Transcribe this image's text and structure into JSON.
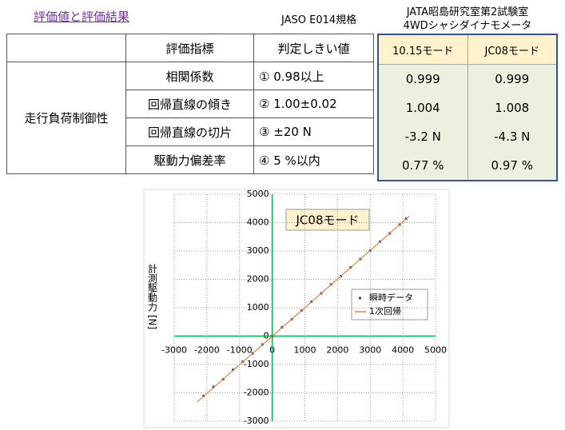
{
  "header": {
    "title": "評価値と評価結果",
    "standard": "JASO E014規格",
    "lab": [
      "JATA昭島研究室第2試験室",
      "4WDシャシダイナモメータ"
    ]
  },
  "table": {
    "header": [
      "評価指標",
      "判定しきい値"
    ],
    "group": "走行負荷制御性",
    "rows": [
      [
        "相関係数",
        "① 0.98以上"
      ],
      [
        "回帰直線の傾き",
        "② 1.00±0.02"
      ],
      [
        "回帰直線の切片",
        "③ ±20 N"
      ],
      [
        "駆動力偏差率",
        "④ 5 %以内"
      ]
    ]
  },
  "results": {
    "header": [
      "10.15モード",
      "JC08モード"
    ],
    "rows": [
      [
        "0.999",
        "0.999"
      ],
      [
        "1.004",
        "1.008"
      ],
      [
        "-3.2 N",
        "-4.3 N"
      ],
      [
        "0.77 %",
        "0.97 %"
      ]
    ]
  },
  "chart_data": {
    "type": "scatter",
    "title": "JC08モード",
    "y_label": "計測駆動力 [N]",
    "xlim": [
      -3000,
      5000
    ],
    "ylim": [
      -3000,
      5000
    ],
    "xticks": [
      -3000,
      -2000,
      -1000,
      0,
      1000,
      2000,
      3000,
      4000,
      5000
    ],
    "yticks": [
      -3000,
      -2000,
      -1000,
      0,
      1000,
      2000,
      3000,
      4000,
      5000
    ],
    "grid": true,
    "series": [
      {
        "name": "瞬時データ",
        "color": "#1f4e9a",
        "x": [
          -2100,
          -1800,
          -1500,
          -1200,
          -900,
          -600,
          -300,
          0,
          300,
          600,
          900,
          1200,
          1500,
          1800,
          2100,
          2400,
          2700,
          3000,
          3300,
          3600,
          3900,
          4100
        ],
        "values": [
          -2110,
          -1790,
          -1520,
          -1190,
          -905,
          -610,
          -295,
          -5,
          310,
          595,
          905,
          1210,
          1505,
          1820,
          2110,
          2425,
          2715,
          3020,
          3330,
          3620,
          3930,
          4140
        ]
      },
      {
        "name": "1次回帰",
        "color": "#ed7d31",
        "x": [
          -2300,
          4200
        ],
        "values": [
          -2323,
          4230
        ]
      }
    ]
  }
}
